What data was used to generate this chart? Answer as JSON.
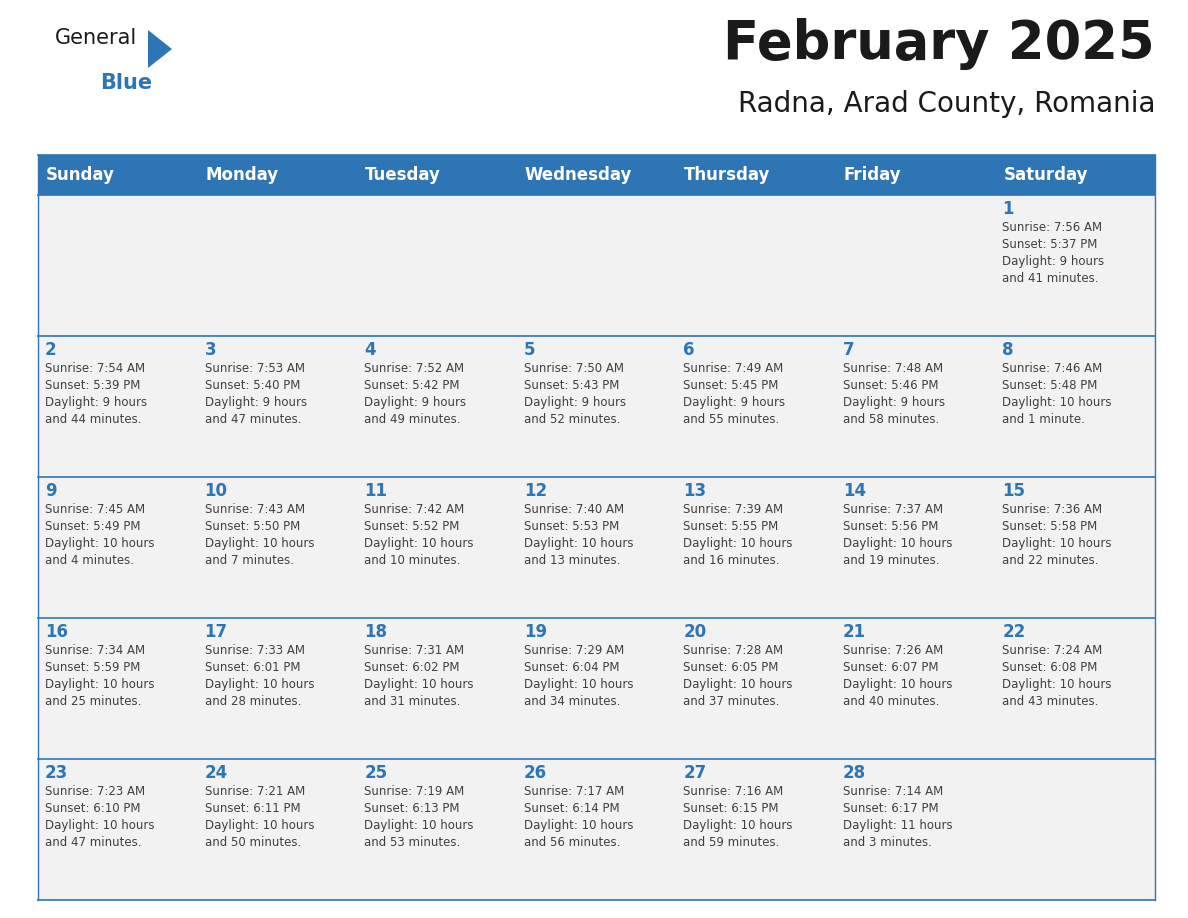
{
  "title": "February 2025",
  "subtitle": "Radna, Arad County, Romania",
  "header_bg": "#2E75B6",
  "header_text_color": "#FFFFFF",
  "cell_bg": "#F2F2F2",
  "border_color": "#2E75B6",
  "title_color": "#1a1a1a",
  "subtitle_color": "#1a1a1a",
  "day_number_color": "#2E75B6",
  "cell_text_color": "#404040",
  "days_of_week": [
    "Sunday",
    "Monday",
    "Tuesday",
    "Wednesday",
    "Thursday",
    "Friday",
    "Saturday"
  ],
  "weeks": [
    [
      {
        "day": null,
        "text": ""
      },
      {
        "day": null,
        "text": ""
      },
      {
        "day": null,
        "text": ""
      },
      {
        "day": null,
        "text": ""
      },
      {
        "day": null,
        "text": ""
      },
      {
        "day": null,
        "text": ""
      },
      {
        "day": 1,
        "text": "Sunrise: 7:56 AM\nSunset: 5:37 PM\nDaylight: 9 hours\nand 41 minutes."
      }
    ],
    [
      {
        "day": 2,
        "text": "Sunrise: 7:54 AM\nSunset: 5:39 PM\nDaylight: 9 hours\nand 44 minutes."
      },
      {
        "day": 3,
        "text": "Sunrise: 7:53 AM\nSunset: 5:40 PM\nDaylight: 9 hours\nand 47 minutes."
      },
      {
        "day": 4,
        "text": "Sunrise: 7:52 AM\nSunset: 5:42 PM\nDaylight: 9 hours\nand 49 minutes."
      },
      {
        "day": 5,
        "text": "Sunrise: 7:50 AM\nSunset: 5:43 PM\nDaylight: 9 hours\nand 52 minutes."
      },
      {
        "day": 6,
        "text": "Sunrise: 7:49 AM\nSunset: 5:45 PM\nDaylight: 9 hours\nand 55 minutes."
      },
      {
        "day": 7,
        "text": "Sunrise: 7:48 AM\nSunset: 5:46 PM\nDaylight: 9 hours\nand 58 minutes."
      },
      {
        "day": 8,
        "text": "Sunrise: 7:46 AM\nSunset: 5:48 PM\nDaylight: 10 hours\nand 1 minute."
      }
    ],
    [
      {
        "day": 9,
        "text": "Sunrise: 7:45 AM\nSunset: 5:49 PM\nDaylight: 10 hours\nand 4 minutes."
      },
      {
        "day": 10,
        "text": "Sunrise: 7:43 AM\nSunset: 5:50 PM\nDaylight: 10 hours\nand 7 minutes."
      },
      {
        "day": 11,
        "text": "Sunrise: 7:42 AM\nSunset: 5:52 PM\nDaylight: 10 hours\nand 10 minutes."
      },
      {
        "day": 12,
        "text": "Sunrise: 7:40 AM\nSunset: 5:53 PM\nDaylight: 10 hours\nand 13 minutes."
      },
      {
        "day": 13,
        "text": "Sunrise: 7:39 AM\nSunset: 5:55 PM\nDaylight: 10 hours\nand 16 minutes."
      },
      {
        "day": 14,
        "text": "Sunrise: 7:37 AM\nSunset: 5:56 PM\nDaylight: 10 hours\nand 19 minutes."
      },
      {
        "day": 15,
        "text": "Sunrise: 7:36 AM\nSunset: 5:58 PM\nDaylight: 10 hours\nand 22 minutes."
      }
    ],
    [
      {
        "day": 16,
        "text": "Sunrise: 7:34 AM\nSunset: 5:59 PM\nDaylight: 10 hours\nand 25 minutes."
      },
      {
        "day": 17,
        "text": "Sunrise: 7:33 AM\nSunset: 6:01 PM\nDaylight: 10 hours\nand 28 minutes."
      },
      {
        "day": 18,
        "text": "Sunrise: 7:31 AM\nSunset: 6:02 PM\nDaylight: 10 hours\nand 31 minutes."
      },
      {
        "day": 19,
        "text": "Sunrise: 7:29 AM\nSunset: 6:04 PM\nDaylight: 10 hours\nand 34 minutes."
      },
      {
        "day": 20,
        "text": "Sunrise: 7:28 AM\nSunset: 6:05 PM\nDaylight: 10 hours\nand 37 minutes."
      },
      {
        "day": 21,
        "text": "Sunrise: 7:26 AM\nSunset: 6:07 PM\nDaylight: 10 hours\nand 40 minutes."
      },
      {
        "day": 22,
        "text": "Sunrise: 7:24 AM\nSunset: 6:08 PM\nDaylight: 10 hours\nand 43 minutes."
      }
    ],
    [
      {
        "day": 23,
        "text": "Sunrise: 7:23 AM\nSunset: 6:10 PM\nDaylight: 10 hours\nand 47 minutes."
      },
      {
        "day": 24,
        "text": "Sunrise: 7:21 AM\nSunset: 6:11 PM\nDaylight: 10 hours\nand 50 minutes."
      },
      {
        "day": 25,
        "text": "Sunrise: 7:19 AM\nSunset: 6:13 PM\nDaylight: 10 hours\nand 53 minutes."
      },
      {
        "day": 26,
        "text": "Sunrise: 7:17 AM\nSunset: 6:14 PM\nDaylight: 10 hours\nand 56 minutes."
      },
      {
        "day": 27,
        "text": "Sunrise: 7:16 AM\nSunset: 6:15 PM\nDaylight: 10 hours\nand 59 minutes."
      },
      {
        "day": 28,
        "text": "Sunrise: 7:14 AM\nSunset: 6:17 PM\nDaylight: 11 hours\nand 3 minutes."
      },
      {
        "day": null,
        "text": ""
      }
    ]
  ],
  "logo_text1": "General",
  "logo_text2": "Blue",
  "logo_color1": "#1a1a1a",
  "logo_color2": "#2E75B6",
  "logo_triangle_color": "#2E75B6",
  "title_fontsize": 38,
  "subtitle_fontsize": 20,
  "header_fontsize": 12,
  "day_num_fontsize": 12,
  "cell_text_fontsize": 8.5
}
